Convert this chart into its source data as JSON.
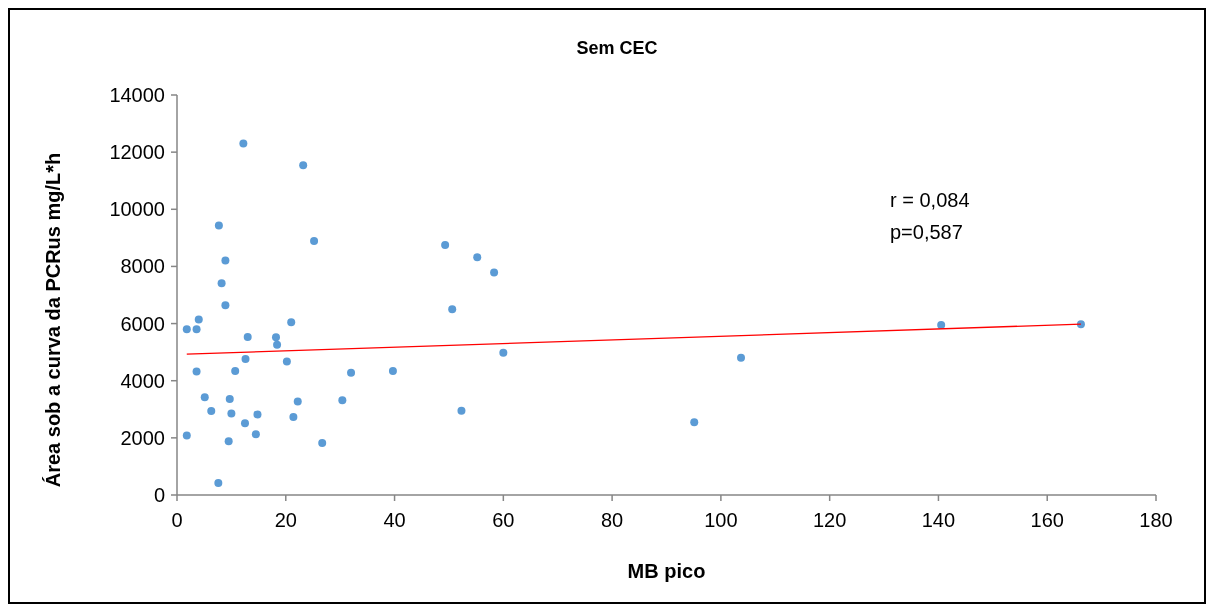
{
  "chart_data": {
    "type": "scatter",
    "title": "Sem CEC",
    "xlabel": "MB pico",
    "ylabel": "Área sob a curva da PCRus mg/L*h",
    "xlim": [
      0,
      180
    ],
    "xticks": [
      0,
      20,
      40,
      60,
      80,
      100,
      120,
      140,
      160,
      180
    ],
    "ylim": [
      0,
      14000
    ],
    "yticks": [
      0,
      2000,
      4000,
      6000,
      8000,
      10000,
      12000,
      14000
    ],
    "grid": false,
    "annotations": [
      "r = 0,084",
      "p=0,587"
    ],
    "series": [
      {
        "color": "#5b9bd5",
        "marker": "circle",
        "x": [
          12.2,
          23.2,
          7.7,
          25.2,
          8.9,
          8.2,
          8.9,
          4.0,
          1.8,
          3.6,
          21.0,
          13.0,
          18.2,
          18.4,
          12.6,
          20.2,
          3.6,
          10.7,
          32.0,
          39.7,
          5.1,
          9.7,
          30.4,
          22.2,
          6.3,
          10.0,
          14.8,
          21.4,
          12.5,
          1.8,
          14.5,
          9.5,
          26.7,
          7.6,
          49.3,
          55.2,
          58.3,
          50.6,
          60.0,
          52.3,
          95.1,
          103.7,
          166.2,
          140.5
        ],
        "values": [
          12300,
          11540,
          9430,
          8890,
          8210,
          7410,
          6640,
          6140,
          5800,
          5800,
          6050,
          5530,
          5520,
          5260,
          4760,
          4670,
          4320,
          4340,
          4280,
          4340,
          3420,
          3360,
          3320,
          3270,
          2940,
          2850,
          2820,
          2730,
          2510,
          2080,
          2130,
          1880,
          1820,
          420,
          8750,
          8320,
          7790,
          6500,
          4980,
          2950,
          2550,
          4800,
          5980,
          5950
        ]
      },
      {
        "type": "line",
        "color": "#ff0000",
        "x": [
          1.8,
          166.2
        ],
        "values": [
          4930,
          5980
        ],
        "marker": "none",
        "line_style": "solid"
      }
    ]
  }
}
